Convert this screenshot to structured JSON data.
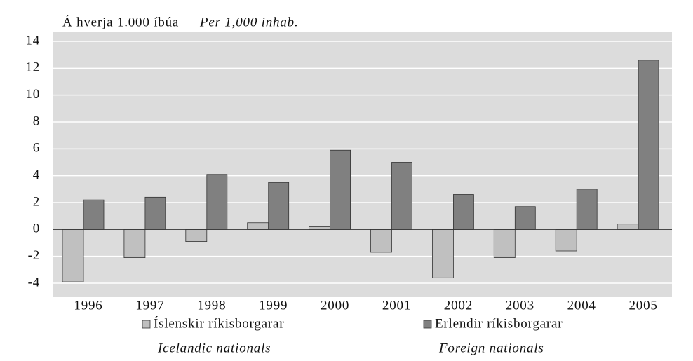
{
  "chart_data": {
    "type": "bar",
    "title": "Á hverja 1.000 íbúa",
    "title_en": "Per 1,000 inhab.",
    "categories": [
      "1996",
      "1997",
      "1998",
      "1999",
      "2000",
      "2001",
      "2002",
      "2003",
      "2004",
      "2005"
    ],
    "series": [
      {
        "name": "Íslenskir ríkisborgarar",
        "name_en": "Icelandic nationals",
        "color": "#c0c0c0",
        "values": [
          -3.9,
          -2.1,
          -0.9,
          0.5,
          0.2,
          -1.7,
          -3.6,
          -2.1,
          -1.6,
          0.4
        ]
      },
      {
        "name": "Erlendir ríkisborgarar",
        "name_en": "Foreign nationals",
        "color": "#808080",
        "values": [
          2.2,
          2.4,
          4.1,
          3.5,
          5.9,
          5.0,
          2.6,
          1.7,
          3.0,
          12.6
        ]
      }
    ],
    "ylim": [
      -4,
      14
    ],
    "yticks": [
      -4,
      -2,
      0,
      2,
      4,
      6,
      8,
      10,
      12,
      14
    ],
    "grid": true
  }
}
